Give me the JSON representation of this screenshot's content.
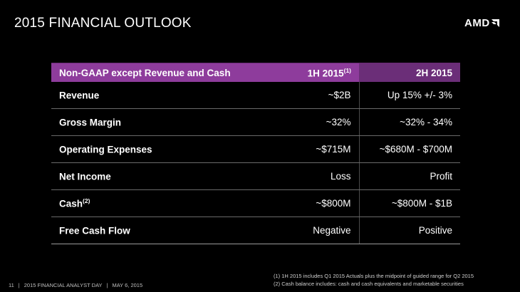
{
  "slide": {
    "title": "2015 FINANCIAL OUTLOOK",
    "logo_text": "AMD"
  },
  "table": {
    "header": {
      "label": "Non-GAAP except Revenue and Cash",
      "col1": "1H 2015",
      "col1_note": "(1)",
      "col2": "2H 2015"
    },
    "rows": [
      {
        "label": "Revenue",
        "note": "",
        "h1": "~$2B",
        "h2": "Up 15% +/- 3%"
      },
      {
        "label": "Gross Margin",
        "note": "",
        "h1": "~32%",
        "h2": "~32% - 34%"
      },
      {
        "label": "Operating Expenses",
        "note": "",
        "h1": "~$715M",
        "h2": "~$680M - $700M"
      },
      {
        "label": "Net Income",
        "note": "",
        "h1": "Loss",
        "h2": "Profit"
      },
      {
        "label": "Cash",
        "note": "(2)",
        "h1": "~$800M",
        "h2": "~$800M - $1B"
      },
      {
        "label": "Free Cash Flow",
        "note": "",
        "h1": "Negative",
        "h2": "Positive"
      }
    ]
  },
  "footnotes": [
    "(1) 1H 2015 includes Q1 2015 Actuals plus the midpoint of guided range for Q2 2015",
    "(2) Cash balance includes: cash and cash equivalents and marketable securities"
  ],
  "footer": {
    "page_number": "11",
    "event": "2015 FINANCIAL ANALYST DAY",
    "date": "MAY 6, 2015"
  },
  "colors": {
    "background": "#000000",
    "header_purple": "#8e3c9c",
    "header_purple_dark": "#6b2e78",
    "text": "#ffffff"
  }
}
